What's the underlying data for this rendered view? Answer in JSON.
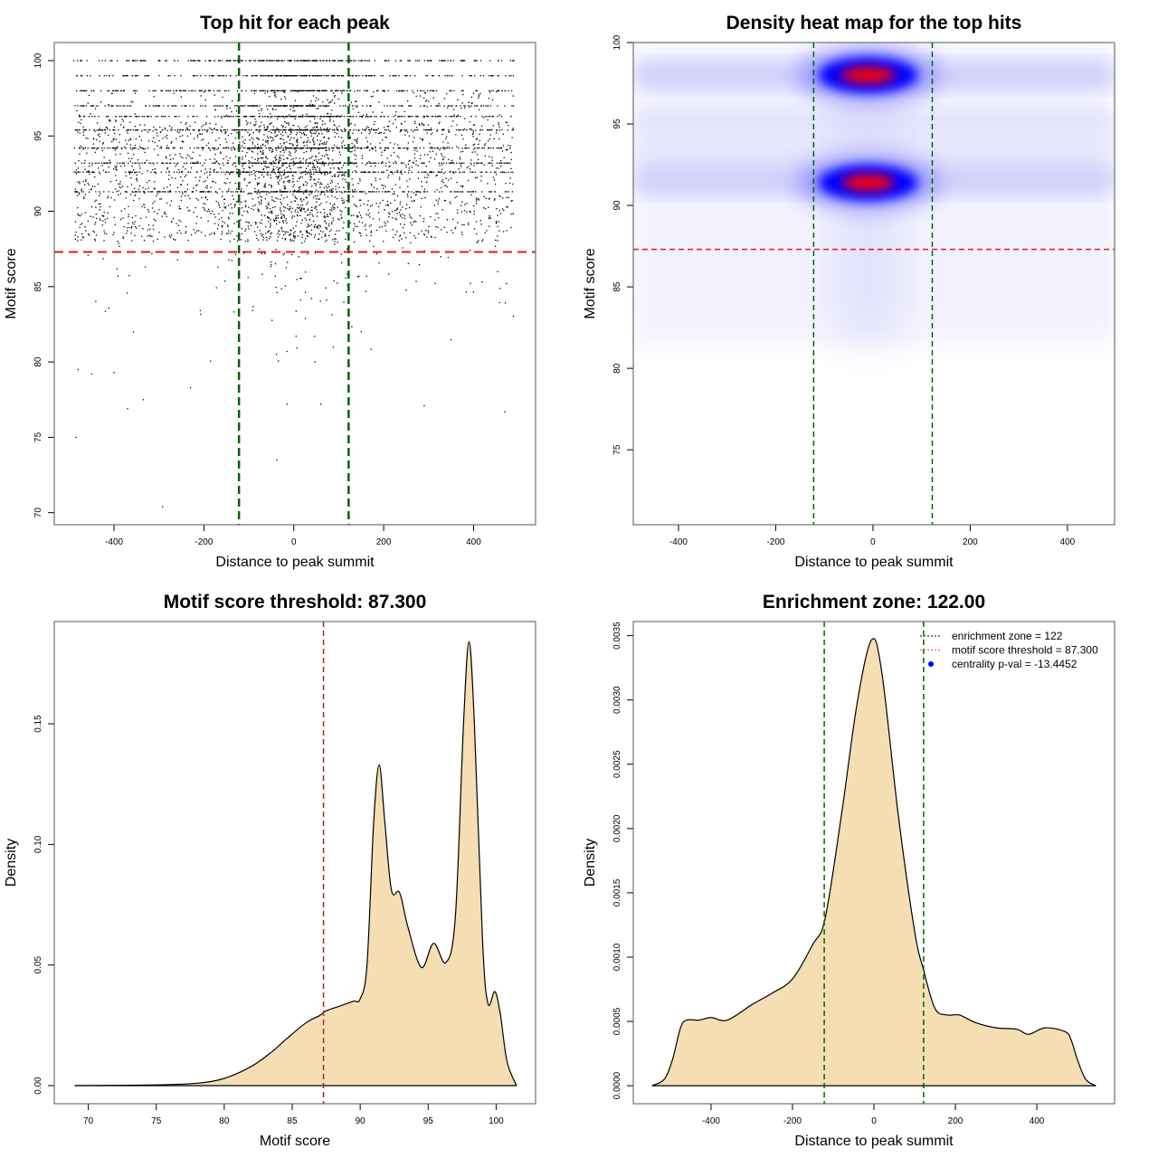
{
  "chart_data": [
    {
      "type": "scatter",
      "title": "Top hit for each peak",
      "xlabel": "Distance to peak summit",
      "ylabel": "Motif score",
      "xlim": [
        -533,
        538
      ],
      "ylim": [
        69.2,
        101.2
      ],
      "xticks": [
        "-400",
        "-200",
        "0",
        "200",
        "400"
      ],
      "yticks": [
        "70",
        "75",
        "80",
        "85",
        "90",
        "95",
        "100"
      ],
      "x_range_of_points": [
        -490,
        490
      ],
      "dense_score_levels": [
        100,
        99,
        98,
        97,
        96.3,
        95.4,
        94.2,
        93.2,
        92.6,
        91.3
      ],
      "outliers": [
        [
          -485,
          75
        ],
        [
          -292,
          70.4
        ],
        [
          -38,
          73.5
        ],
        [
          -370,
          76.9
        ],
        [
          -335,
          77.5
        ],
        [
          -230,
          78.3
        ],
        [
          -15,
          77.2
        ],
        [
          60,
          77.2
        ],
        [
          290,
          77.1
        ],
        [
          470,
          76.7
        ],
        [
          -480,
          79.5
        ],
        [
          -450,
          79.2
        ],
        [
          -400,
          79.3
        ]
      ],
      "enrichment_zone": 122,
      "threshold": 87.3,
      "colors": {
        "points": "#000000",
        "zone": "#006400",
        "threshold": "#e31a1c"
      }
    },
    {
      "type": "heatmap",
      "title": "Density heat map for the top hits",
      "xlabel": "Distance to peak summit",
      "ylabel": "Motif score",
      "xlim": [
        -493,
        497
      ],
      "ylim": [
        70.4,
        100
      ],
      "xticks": [
        "-400",
        "-200",
        "0",
        "200",
        "400"
      ],
      "yticks": [
        "75",
        "80",
        "85",
        "90",
        "95",
        "100"
      ],
      "hotspots": [
        {
          "x": -10,
          "y": 98,
          "intensity": 1.0
        },
        {
          "x": -10,
          "y": 91.4,
          "intensity": 0.95
        }
      ],
      "bands": [
        98,
        95,
        93,
        91.5
      ],
      "enrichment_zone": 122,
      "threshold": 87.3,
      "colors": {
        "low": "#ffffff",
        "mid": "#0000ff",
        "high": "#ff0000",
        "zone": "#006400",
        "threshold": "#e31a1c"
      }
    },
    {
      "type": "area",
      "title": "Motif score threshold: 87.300",
      "xlabel": "Motif score",
      "ylabel": "Density",
      "xlim": [
        67.5,
        102.9
      ],
      "ylim": [
        -0.0075,
        0.1924
      ],
      "xticks": [
        "70",
        "75",
        "80",
        "85",
        "90",
        "95",
        "100"
      ],
      "yticks": [
        "0.00",
        "0.05",
        "0.10",
        "0.15"
      ],
      "x": [
        69,
        75,
        78,
        80,
        82,
        83.5,
        84.5,
        86,
        87,
        87.5,
        88.5,
        89.5,
        90,
        90.5,
        91,
        91.4,
        91.8,
        92.3,
        92.9,
        93.5,
        94.5,
        95.4,
        96.3,
        97,
        97.6,
        98,
        98.4,
        99,
        99.4,
        99.9,
        100.3,
        100.8,
        101.5
      ],
      "y": [
        0,
        0.0003,
        0.001,
        0.003,
        0.008,
        0.014,
        0.019,
        0.026,
        0.029,
        0.031,
        0.033,
        0.035,
        0.036,
        0.05,
        0.11,
        0.133,
        0.11,
        0.081,
        0.08,
        0.066,
        0.049,
        0.059,
        0.051,
        0.07,
        0.15,
        0.184,
        0.15,
        0.06,
        0.034,
        0.039,
        0.03,
        0.01,
        0
      ],
      "threshold": 87.3,
      "colors": {
        "fill": "#f5deb3",
        "line": "#000000",
        "threshold": "#b22222"
      }
    },
    {
      "type": "area",
      "title": "Enrichment zone: 122.00",
      "xlabel": "Distance to peak summit",
      "ylabel": "Density",
      "xlim": [
        -591,
        591
      ],
      "ylim": [
        -0.00014,
        0.00361
      ],
      "xticks": [
        "-400",
        "-200",
        "0",
        "200",
        "400"
      ],
      "yticks": [
        "0.0000",
        "0.0005",
        "0.0010",
        "0.0015",
        "0.0020",
        "0.0025",
        "0.0030",
        "0.0035"
      ],
      "x": [
        -545,
        -515,
        -495,
        -475,
        -460,
        -430,
        -400,
        -360,
        -300,
        -250,
        -200,
        -150,
        -120,
        -80,
        -40,
        -5,
        20,
        60,
        100,
        122,
        150,
        180,
        210,
        250,
        300,
        350,
        380,
        420,
        470,
        485,
        500,
        520,
        545
      ],
      "y": [
        0,
        5e-05,
        0.0002,
        0.00045,
        0.00051,
        0.00051,
        0.00053,
        0.00051,
        0.00063,
        0.00072,
        0.00083,
        0.0011,
        0.0013,
        0.0021,
        0.003,
        0.00347,
        0.0032,
        0.0021,
        0.0012,
        0.0009,
        0.0006,
        0.00055,
        0.00055,
        0.00049,
        0.00045,
        0.00044,
        0.0004,
        0.00045,
        0.00042,
        0.00035,
        0.0002,
        5e-05,
        0
      ],
      "enrichment_zone": 122,
      "legend": {
        "position": "top-right",
        "items": [
          {
            "label": "enrichment zone = 122",
            "symbol": "dotted-line",
            "color": "#006400"
          },
          {
            "label": "motif score threshold = 87.300",
            "symbol": "dotted-line",
            "color": "#ff6666"
          },
          {
            "label": "centrality p-val = -13.4452",
            "symbol": "dot",
            "color": "#0000ff"
          }
        ]
      },
      "colors": {
        "fill": "#f5deb3",
        "line": "#000000",
        "zone": "#006400"
      }
    }
  ]
}
